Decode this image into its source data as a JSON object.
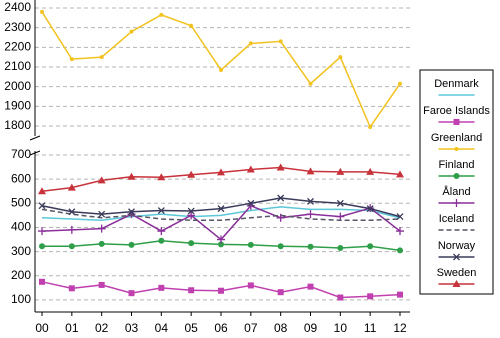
{
  "chart_data": {
    "type": "line",
    "categories": [
      "00",
      "01",
      "02",
      "03",
      "04",
      "05",
      "06",
      "07",
      "08",
      "09",
      "10",
      "11",
      "12"
    ],
    "ylim": [
      50,
      2400
    ],
    "ybreak": [
      700,
      1800
    ],
    "yticks": [
      100,
      200,
      300,
      400,
      500,
      600,
      700,
      1800,
      1900,
      2000,
      2100,
      2200,
      2300,
      2400
    ],
    "grid": true,
    "legend": "right",
    "series": [
      {
        "name": "Denmark",
        "color": "#5bc8d8",
        "marker": "none",
        "dash": false,
        "values": [
          440,
          435,
          430,
          445,
          455,
          445,
          450,
          470,
          485,
          475,
          475,
          470,
          440
        ]
      },
      {
        "name": "Faroe Islands",
        "color": "#c040b0",
        "marker": "square",
        "dash": false,
        "values": [
          175,
          148,
          162,
          128,
          150,
          140,
          138,
          160,
          132,
          155,
          110,
          115,
          122
        ]
      },
      {
        "name": "Greenland",
        "color": "#f2c21e",
        "marker": "dot",
        "dash": false,
        "values": [
          2380,
          2140,
          2150,
          2280,
          2365,
          2310,
          2085,
          2220,
          2230,
          2015,
          2150,
          1795,
          2015
        ]
      },
      {
        "name": "Finland",
        "color": "#2e9e48",
        "marker": "circle",
        "dash": false,
        "values": [
          322,
          322,
          332,
          328,
          345,
          335,
          330,
          328,
          322,
          320,
          315,
          322,
          305
        ]
      },
      {
        "name": "Åland",
        "color": "#8a2f9a",
        "marker": "plus",
        "dash": false,
        "values": [
          385,
          390,
          395,
          455,
          385,
          450,
          350,
          490,
          440,
          455,
          445,
          480,
          385
        ]
      },
      {
        "name": "Iceland",
        "color": "#555566",
        "marker": "none",
        "dash": true,
        "values": [
          475,
          455,
          440,
          450,
          435,
          430,
          430,
          440,
          450,
          435,
          430,
          430,
          435
        ]
      },
      {
        "name": "Norway",
        "color": "#3a3a5a",
        "marker": "x",
        "dash": false,
        "values": [
          490,
          465,
          455,
          465,
          470,
          468,
          478,
          500,
          522,
          508,
          500,
          478,
          445
        ]
      },
      {
        "name": "Sweden",
        "color": "#c8323a",
        "marker": "triangle",
        "dash": false,
        "values": [
          550,
          565,
          595,
          610,
          608,
          618,
          628,
          640,
          648,
          632,
          630,
          630,
          620
        ]
      }
    ]
  }
}
